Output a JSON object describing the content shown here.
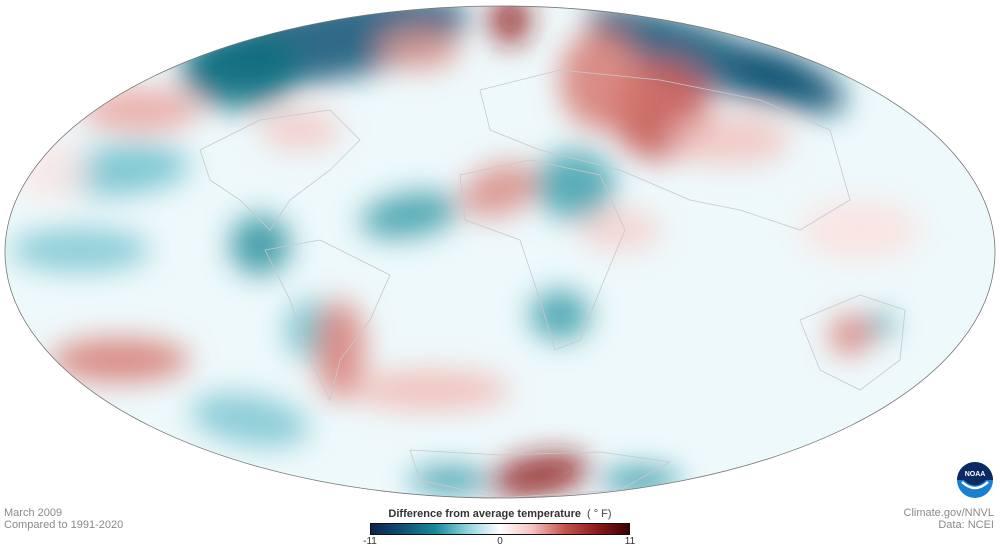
{
  "map": {
    "projection": "Mollweide",
    "land_outline_color": "#c8c8c8"
  },
  "footer_left": {
    "date": "March 2009",
    "baseline": "Compared to 1991-2020"
  },
  "footer_right": {
    "source": "Climate.gov/NNVL",
    "data": "Data: NCEI"
  },
  "logo": {
    "text": "NOAA"
  },
  "legend": {
    "title": "Difference from average temperature",
    "unit": "( ° F)",
    "min": "-11",
    "mid": "0",
    "max": "11",
    "colors": [
      "#0d2350",
      "#0f5273",
      "#178a9c",
      "#8fd5df",
      "#ffffff",
      "#f5c3c0",
      "#c5544d",
      "#8e1a1a",
      "#3d0000"
    ]
  }
}
